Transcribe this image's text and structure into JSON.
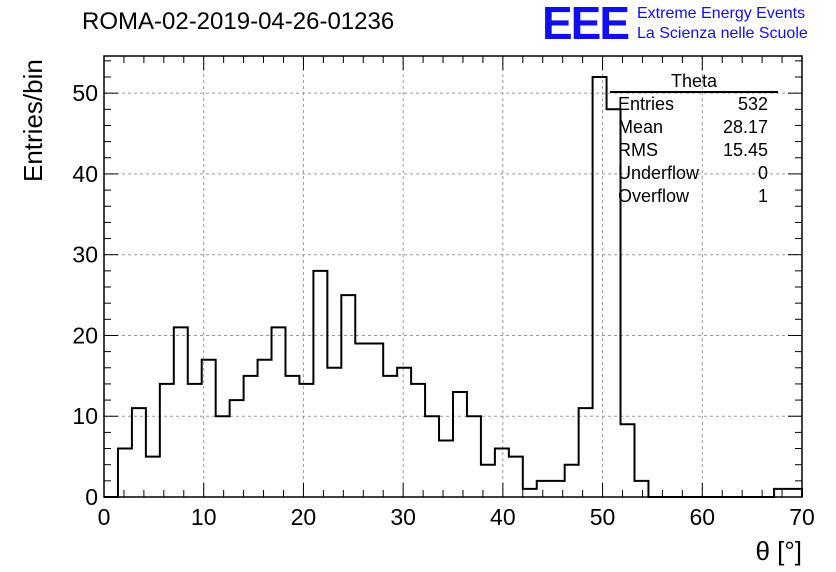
{
  "title": "ROMA-02-2019-04-26-01236",
  "logo": {
    "mark": "EEE",
    "line1": "Extreme Energy Events",
    "line2": "La Scienza nelle Scuole",
    "color": "#1010ee"
  },
  "stats_box": {
    "name": "Theta",
    "rows": [
      {
        "label": "Entries",
        "value": "532"
      },
      {
        "label": "Mean",
        "value": "28.17"
      },
      {
        "label": "RMS",
        "value": "15.45"
      },
      {
        "label": "Underflow",
        "value": "0"
      },
      {
        "label": "Overflow",
        "value": "1"
      }
    ]
  },
  "chart_data": {
    "type": "bar",
    "histogram": true,
    "title": "ROMA-02-2019-04-26-01236",
    "xlabel": "θ [°]",
    "ylabel": "Entries/bin",
    "xlim": [
      0,
      70
    ],
    "ylim": [
      0,
      54.6
    ],
    "xticks": [
      0,
      10,
      20,
      30,
      40,
      50,
      60,
      70
    ],
    "yticks": [
      0,
      10,
      20,
      30,
      40,
      50
    ],
    "grid": true,
    "bin_width": 1.4,
    "bin_edges_start": 0,
    "values": [
      0,
      6,
      11,
      5,
      14,
      21,
      14,
      17,
      10,
      12,
      15,
      17,
      21,
      15,
      14,
      28,
      16,
      25,
      19,
      19,
      15,
      16,
      14,
      10,
      7,
      13,
      10,
      4,
      6,
      5,
      1,
      2,
      2,
      4,
      11,
      52,
      48,
      9,
      2,
      0,
      0,
      0,
      0,
      0,
      0,
      0,
      0,
      0,
      1,
      1
    ]
  }
}
